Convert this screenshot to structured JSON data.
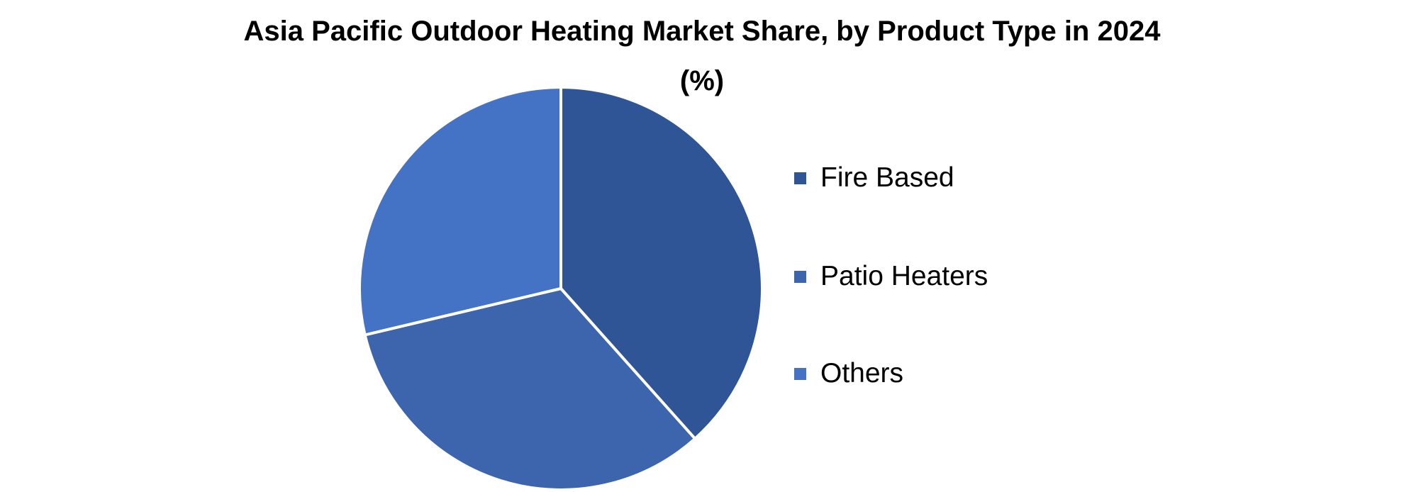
{
  "chart_data": {
    "type": "pie",
    "title": "Asia Pacific Outdoor Heating Market Share, by Product Type in 2024",
    "subtitle": "(%)",
    "legend_position": "right",
    "slices": [
      {
        "label": "Fire Based",
        "value": 38.4,
        "color": "#2F5597"
      },
      {
        "label": "Patio Heaters",
        "value": 32.9,
        "color": "#3C65AD"
      },
      {
        "label": "Others",
        "value": 28.7,
        "color": "#4472C4"
      }
    ]
  }
}
